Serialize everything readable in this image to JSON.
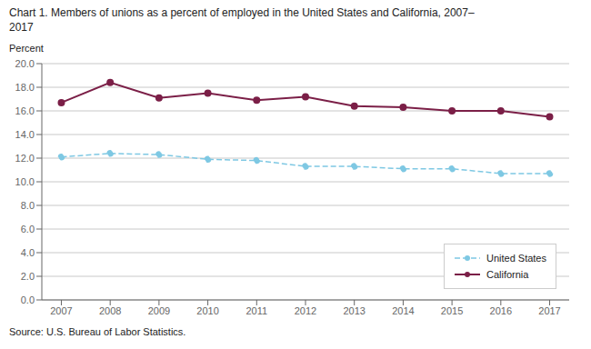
{
  "chart_data": {
    "type": "line",
    "title": "Chart 1. Members of unions as a percent of employed in the United States and California, 2007–\n2017",
    "y_label": "Percent",
    "source": "Source: U.S. Bureau of Labor Statistics.",
    "x": [
      2007,
      2008,
      2009,
      2010,
      2011,
      2012,
      2013,
      2014,
      2015,
      2016,
      2017
    ],
    "series": [
      {
        "name": "United States",
        "color": "#7EC8E3",
        "line_style": "dashed",
        "marker": "circle",
        "values": [
          12.1,
          12.4,
          12.3,
          11.9,
          11.8,
          11.3,
          11.3,
          11.1,
          11.1,
          10.7,
          10.7
        ]
      },
      {
        "name": "California",
        "color": "#7B1F47",
        "line_style": "solid",
        "marker": "circle",
        "values": [
          16.7,
          18.4,
          17.1,
          17.5,
          16.9,
          17.2,
          16.4,
          16.3,
          16.0,
          16.0,
          15.5
        ]
      }
    ],
    "xlim": [
      2006.6,
      2017.4
    ],
    "xticks": [
      2007,
      2008,
      2009,
      2010,
      2011,
      2012,
      2013,
      2014,
      2015,
      2016,
      2017
    ],
    "ylim": [
      0,
      20.0
    ],
    "yticks": [
      {
        "value": 0,
        "label": "0.0"
      },
      {
        "value": 2,
        "label": "2.0"
      },
      {
        "value": 4,
        "label": "4.0"
      },
      {
        "value": 6,
        "label": "6.0"
      },
      {
        "value": 8,
        "label": "8.0"
      },
      {
        "value": 10,
        "label": "10.0"
      },
      {
        "value": 12,
        "label": "12.0"
      },
      {
        "value": 14,
        "label": "14.0"
      },
      {
        "value": 16,
        "label": "16.0"
      },
      {
        "value": 18,
        "label": "18.0"
      },
      {
        "value": 20,
        "label": "20.0"
      }
    ],
    "grid": "y",
    "legend": "lower right"
  }
}
